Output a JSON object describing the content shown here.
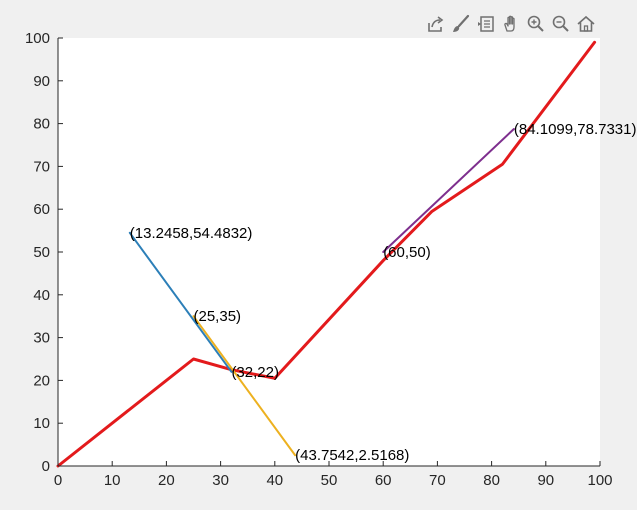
{
  "toolbar": {
    "icons": [
      "export-icon",
      "brush-icon",
      "data-tip-icon",
      "pan-icon",
      "zoom-in-icon",
      "zoom-out-icon",
      "home-icon"
    ]
  },
  "colors": {
    "background": "#f0f0f0",
    "axes_bg": "#ffffff",
    "main_line": "#e31a1c",
    "blue_segment": "#2c7fb8",
    "yellow_segment": "#edb120",
    "purple_segment": "#7e2f8e",
    "toolbar_icon": "#707070"
  },
  "chart_data": {
    "type": "line",
    "title": "",
    "xlabel": "",
    "ylabel": "",
    "xlim": [
      0,
      100
    ],
    "ylim": [
      0,
      100
    ],
    "xticks": [
      0,
      10,
      20,
      30,
      40,
      50,
      60,
      70,
      80,
      90,
      100
    ],
    "yticks": [
      0,
      10,
      20,
      30,
      40,
      50,
      60,
      70,
      80,
      90,
      100
    ],
    "grid": false,
    "series": [
      {
        "color": "#e31a1c",
        "width": 3,
        "x": [
          0,
          25,
          32,
          40,
          60,
          69,
          82,
          99
        ],
        "y": [
          0,
          25,
          22.5,
          20.5,
          48,
          59.5,
          70.5,
          99
        ]
      },
      {
        "color": "#2c7fb8",
        "width": 2,
        "x": [
          13.2458,
          32
        ],
        "y": [
          54.4832,
          22
        ]
      },
      {
        "color": "#edb120",
        "width": 2,
        "x": [
          25,
          43.7542
        ],
        "y": [
          35,
          2.5168
        ]
      },
      {
        "color": "#7e2f8e",
        "width": 2,
        "x": [
          60,
          84.1099
        ],
        "y": [
          50,
          78.7331
        ]
      }
    ],
    "annotations": [
      {
        "text": "(13.2458,54.4832)",
        "x": 13.2458,
        "y": 54.4832
      },
      {
        "text": "(25,35)",
        "x": 25,
        "y": 35
      },
      {
        "text": "(32,22)",
        "x": 32,
        "y": 22
      },
      {
        "text": "(43.7542,2.5168)",
        "x": 43.7542,
        "y": 2.5168
      },
      {
        "text": "(60,50)",
        "x": 60,
        "y": 50
      },
      {
        "text": "(84.1099,78.7331)",
        "x": 84.1099,
        "y": 78.7331
      }
    ]
  }
}
